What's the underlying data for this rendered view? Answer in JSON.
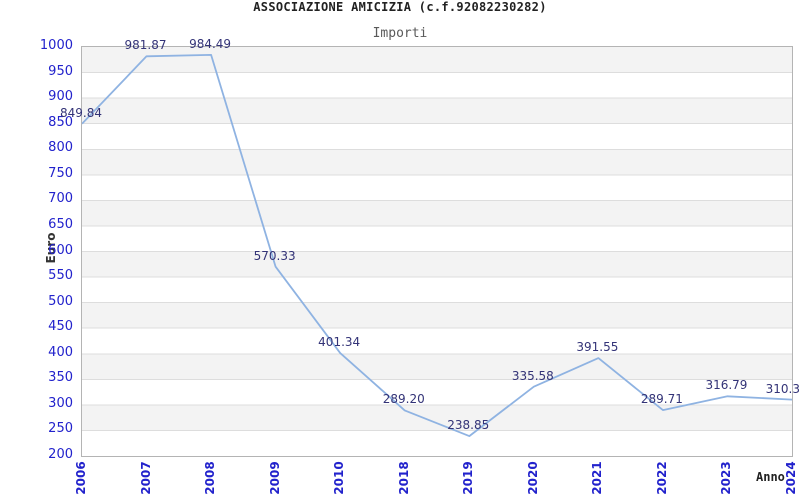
{
  "chart_data": {
    "type": "line",
    "title": "ASSOCIAZIONE AMICIZIA (c.f.92082230282)",
    "subtitle": "Importi",
    "xlabel": "Anno",
    "ylabel": "Euro",
    "categories": [
      "2006",
      "2007",
      "2008",
      "2009",
      "2010",
      "2018",
      "2019",
      "2020",
      "2021",
      "2022",
      "2023",
      "2024"
    ],
    "values": [
      849.84,
      981.87,
      984.49,
      570.33,
      401.34,
      289.2,
      238.85,
      335.58,
      391.55,
      289.71,
      316.79,
      310.3
    ],
    "point_labels": [
      "849.84",
      "981.87",
      "984.49",
      "570.33",
      "401.34",
      "289.20",
      "238.85",
      "335.58",
      "391.55",
      "289.71",
      "316.79",
      "310.3"
    ],
    "ylim": [
      200,
      1000
    ],
    "ytick_step": 50,
    "grid": "horizontal-bands-alternating",
    "legend": "none",
    "colors": {
      "line": "#8fb3e2",
      "tick_label": "#2222cc",
      "point_label": "#333377",
      "band_gray": "#f3f3f3",
      "band_white": "#ffffff",
      "gridline": "#dddddd",
      "plot_border": "#b4b4b4",
      "title": "#222222",
      "subtitle": "#5a5a5a",
      "axis_title": "#333333"
    }
  }
}
